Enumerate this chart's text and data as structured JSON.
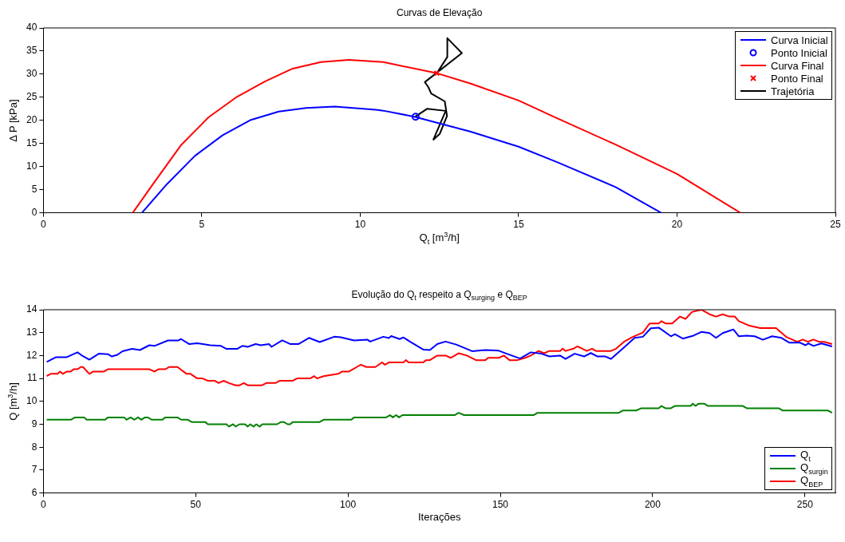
{
  "chart_data": [
    {
      "type": "line",
      "title": "Curvas de Elevação",
      "xlabel": "Q$_{t}$ [m$^{3}$/h]",
      "ylabel": "Δ P [kPa]",
      "xlim": [
        0,
        25
      ],
      "xticks": [
        0,
        5,
        10,
        15,
        20,
        25
      ],
      "ylim": [
        0,
        40
      ],
      "yticks": [
        0,
        5,
        10,
        15,
        20,
        25,
        30,
        35,
        40
      ],
      "legend": "top right",
      "series": [
        {
          "name": "Curva Inicial",
          "color": "#0000ff",
          "x": [
            3.11,
            3.9,
            4.78,
            5.66,
            6.55,
            7.43,
            8.3,
            9.2,
            10.5,
            10.73,
            11.71,
            13.47,
            15,
            16.2,
            18.05,
            19.5
          ],
          "values": [
            0,
            6.2,
            12.3,
            16.8,
            20.1,
            21.9,
            22.7,
            23,
            22.3,
            22.1,
            20.8,
            17.6,
            14.3,
            11,
            5.6,
            0
          ]
        },
        {
          "name": "Ponto Inicial",
          "type": "scatter",
          "marker": "circle",
          "color": "#0000ff",
          "x": [
            11.75
          ],
          "values": [
            20.8
          ]
        },
        {
          "name": "Curva Final",
          "color": "#ff0000",
          "x": [
            2.82,
            3.46,
            4.34,
            5.22,
            6.11,
            6.99,
            7.87,
            8.76,
            9.64,
            10.73,
            12.37,
            13.47,
            15,
            16.2,
            18.05,
            20,
            22
          ],
          "values": [
            0,
            6.2,
            14.6,
            20.7,
            25.1,
            28.4,
            31.2,
            32.6,
            33.1,
            32.6,
            30.3,
            28,
            24.3,
            20.5,
            14.8,
            8.4,
            0
          ]
        },
        {
          "name": "Ponto Final",
          "type": "scatter",
          "marker": "cross",
          "color": "#ff0000",
          "x": [
            12.42
          ],
          "values": [
            30.2
          ]
        },
        {
          "name": "Trajetória",
          "color": "#000000",
          "x": [
            11.74,
            12.11,
            12.7,
            12.31,
            12.51,
            12.74,
            12.67,
            12.24,
            12.15,
            12.04,
            13.21,
            12.75,
            12.75,
            12.42
          ],
          "values": [
            20.8,
            22.5,
            22.06,
            15.83,
            17.06,
            20.94,
            24.11,
            25.83,
            27.22,
            28.28,
            34.56,
            37.78,
            33.72,
            30.22
          ]
        }
      ]
    },
    {
      "type": "line",
      "title": "Evolução do Q$_{t}$ respeito a Q$_{surging}$ e Q$_{BEP}$",
      "xlabel": "Iterações",
      "ylabel": "Q [m$^{3}$/h]",
      "xlim": [
        0,
        260
      ],
      "xticks": [
        0,
        50,
        100,
        150,
        200,
        250
      ],
      "ylim": [
        6,
        14
      ],
      "yticks": [
        6,
        7,
        8,
        9,
        10,
        11,
        12,
        13,
        14
      ],
      "legend": "bottom right",
      "series": [
        {
          "name": "Q$_{t}$",
          "color": "#0000ff",
          "x": [
            1.1,
            4.2,
            7.7,
            11.2,
            12.9,
            15.1,
            18.2,
            21.2,
            22.5,
            24.3,
            26,
            29.1,
            31.7,
            34.8,
            36.5,
            40.9,
            44.4,
            45.2,
            47.9,
            50.5,
            54.8,
            58.3,
            60.1,
            63.6,
            65.3,
            67.1,
            69.7,
            71.4,
            74.1,
            74.9,
            78.4,
            81.1,
            83.7,
            87.2,
            90.7,
            95.5,
            97.6,
            102,
            106.4,
            107.3,
            111.6,
            113.4,
            114.2,
            116.9,
            118.2,
            120.3,
            124.7,
            126.9,
            129.3,
            132,
            135.5,
            139,
            140.7,
            145.1,
            149.5,
            152.1,
            156.5,
            160,
            163.5,
            166.1,
            169.6,
            171.4,
            174.4,
            177.5,
            179.7,
            181.9,
            184.5,
            186.3,
            190.6,
            194.1,
            196.8,
            199.4,
            202,
            206,
            207.3,
            209.9,
            213.4,
            216,
            218.7,
            220.8,
            223,
            226.5,
            228.3,
            230.9,
            233.5,
            236.2,
            239.2,
            242.3,
            244.9,
            248.4,
            250.2,
            251.1,
            252.8,
            255.4,
            258.9
          ],
          "values": [
            11.72,
            11.93,
            11.93,
            12.14,
            11.98,
            11.82,
            12.08,
            12.06,
            11.96,
            12.03,
            12.19,
            12.29,
            12.24,
            12.45,
            12.42,
            12.66,
            12.66,
            12.72,
            12.5,
            12.54,
            12.45,
            12.42,
            12.29,
            12.29,
            12.42,
            12.38,
            12.5,
            12.45,
            12.5,
            12.38,
            12.66,
            12.5,
            12.5,
            12.77,
            12.59,
            12.82,
            12.8,
            12.66,
            12.69,
            12.61,
            12.82,
            12.76,
            12.85,
            12.72,
            12.79,
            12.61,
            12.26,
            12.24,
            12.5,
            12.61,
            12.48,
            12.29,
            12.19,
            12.24,
            12.21,
            12.08,
            11.87,
            12.14,
            12.08,
            11.96,
            12,
            11.85,
            12.08,
            11.96,
            12.11,
            11.96,
            11.96,
            11.85,
            12.35,
            12.77,
            12.82,
            13.19,
            13.22,
            12.84,
            12.93,
            12.74,
            12.87,
            13.03,
            12.98,
            12.77,
            12.98,
            13.14,
            12.84,
            12.87,
            12.84,
            12.69,
            12.84,
            12.77,
            12.56,
            12.56,
            12.45,
            12.53,
            12.42,
            12.53,
            12.4
          ]
        },
        {
          "name": "Q$_{surgin}$",
          "color": "#008000",
          "x": [
            1.1,
            9,
            10.4,
            13.4,
            14.2,
            20.3,
            21.2,
            26.5,
            27.3,
            28.6,
            29.9,
            31.1,
            32.1,
            33.4,
            34.3,
            35.5,
            39.1,
            40,
            44,
            45.2,
            47.4,
            48.7,
            53.1,
            54,
            60.1,
            60.9,
            62.3,
            63.1,
            64.4,
            66.2,
            67.1,
            67.9,
            69,
            69.9,
            71,
            71.9,
            76.7,
            78,
            78.9,
            80.2,
            81,
            81.9,
            90.7,
            92,
            101.1,
            102,
            112.5,
            113.8,
            114.7,
            115.8,
            116.7,
            117.9,
            135,
            136.3,
            138.1,
            160.9,
            162.2,
            188.9,
            190.2,
            194.6,
            196.3,
            202,
            202.9,
            204.2,
            206,
            207.3,
            212.5,
            213.2,
            214.1,
            215.1,
            216.9,
            218.2,
            229.6,
            230.9,
            241.4,
            242.7,
            257.6,
            258.9
          ],
          "values": [
            9.2,
            9.2,
            9.3,
            9.3,
            9.2,
            9.2,
            9.3,
            9.3,
            9.2,
            9.3,
            9.2,
            9.3,
            9.2,
            9.3,
            9.3,
            9.2,
            9.2,
            9.3,
            9.3,
            9.2,
            9.2,
            9.1,
            9.1,
            9,
            9,
            8.9,
            9,
            8.9,
            9,
            9,
            8.9,
            9,
            8.9,
            9,
            8.9,
            9,
            9,
            9.1,
            9.1,
            9,
            9,
            9.1,
            9.1,
            9.2,
            9.2,
            9.3,
            9.3,
            9.4,
            9.3,
            9.4,
            9.3,
            9.4,
            9.4,
            9.5,
            9.4,
            9.4,
            9.5,
            9.5,
            9.6,
            9.6,
            9.7,
            9.7,
            9.8,
            9.7,
            9.7,
            9.8,
            9.8,
            9.9,
            9.8,
            9.9,
            9.9,
            9.8,
            9.8,
            9.7,
            9.7,
            9.6,
            9.6,
            9.5
          ]
        },
        {
          "name": "Q$_{BEP}$",
          "color": "#ff0000",
          "x": [
            1.1,
            2.4,
            4.6,
            5.5,
            6.4,
            7.7,
            9,
            9.9,
            11.2,
            12.3,
            13,
            15.1,
            16.4,
            19.9,
            21.2,
            34.8,
            36.5,
            37.8,
            40,
            41.3,
            44,
            47,
            48.3,
            50.5,
            52.2,
            54,
            56.2,
            57.5,
            59.2,
            60.9,
            63.1,
            64.4,
            65.8,
            67.1,
            71.8,
            73.2,
            76.2,
            77.6,
            81.9,
            83.3,
            87.6,
            88.9,
            89.8,
            92,
            96.8,
            98.1,
            100.3,
            101.6,
            102.9,
            104.2,
            106,
            109,
            111.2,
            112.1,
            113.4,
            118.2,
            119,
            119.9,
            124.7,
            125.6,
            126.9,
            129.3,
            132,
            133.7,
            136.3,
            139,
            142,
            145.1,
            146,
            149.5,
            151.2,
            153,
            155.6,
            158.2,
            160,
            162.6,
            164.4,
            166.1,
            169.6,
            170.5,
            171.4,
            174,
            175.3,
            178.4,
            180.1,
            181.4,
            186.3,
            188,
            190.6,
            193.3,
            196.8,
            199,
            202,
            202.9,
            204.2,
            206.4,
            209,
            210.8,
            212.9,
            216,
            218.7,
            220.8,
            223,
            225.2,
            227,
            228.3,
            231.8,
            235.3,
            240.5,
            244,
            247.5,
            249.3,
            251,
            252.8,
            254.6,
            256.3,
            258.9
          ],
          "values": [
            11.1,
            11.2,
            11.2,
            11.3,
            11.2,
            11.3,
            11.3,
            11.4,
            11.4,
            11.5,
            11.5,
            11.2,
            11.3,
            11.3,
            11.4,
            11.4,
            11.3,
            11.4,
            11.4,
            11.5,
            11.5,
            11.2,
            11.2,
            11,
            11,
            10.9,
            10.9,
            10.8,
            10.9,
            10.8,
            10.7,
            10.7,
            10.8,
            10.7,
            10.7,
            10.8,
            10.8,
            10.9,
            10.9,
            11,
            11,
            11.1,
            11,
            11.1,
            11.2,
            11.3,
            11.3,
            11.4,
            11.5,
            11.6,
            11.5,
            11.5,
            11.7,
            11.6,
            11.7,
            11.7,
            11.8,
            11.7,
            11.7,
            11.8,
            11.8,
            12,
            12,
            11.9,
            12.1,
            12,
            11.8,
            11.8,
            11.9,
            11.9,
            12,
            11.8,
            11.8,
            11.9,
            12,
            12.2,
            12.1,
            12.2,
            12.2,
            12.3,
            12.2,
            12.3,
            12.4,
            12.2,
            12.3,
            12.2,
            12.2,
            12.3,
            12.6,
            12.8,
            13,
            13.4,
            13.4,
            13.5,
            13.4,
            13.4,
            13.7,
            13.6,
            13.9,
            14,
            13.8,
            13.7,
            13.8,
            13.7,
            13.7,
            13.5,
            13.3,
            13.2,
            13.2,
            12.8,
            12.6,
            12.7,
            12.6,
            12.7,
            12.6,
            12.6,
            12.5
          ]
        }
      ]
    }
  ]
}
